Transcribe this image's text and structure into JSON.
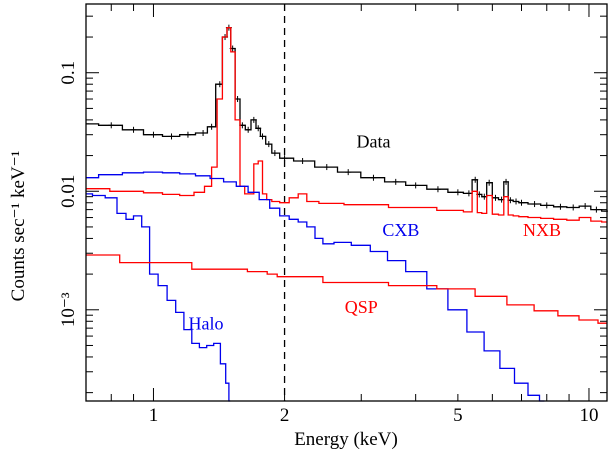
{
  "chart_data": {
    "type": "line",
    "xlabel": "Energy (keV)",
    "ylabel": "Counts sec⁻¹ keV⁻¹",
    "x_scale": "log",
    "y_scale": "log",
    "xlim": [
      0.7,
      11.0
    ],
    "ylim": [
      0.00017,
      0.38
    ],
    "x_ticks": [
      {
        "value": 1,
        "label": "1"
      },
      {
        "value": 2,
        "label": "2"
      },
      {
        "value": 5,
        "label": "5"
      },
      {
        "value": 10,
        "label": "10"
      }
    ],
    "y_ticks": [
      {
        "value": 0.001,
        "label": "10⁻³"
      },
      {
        "value": 0.01,
        "label": "0.01"
      },
      {
        "value": 0.1,
        "label": "0.1"
      }
    ],
    "reference_lines": [
      {
        "x": 2.0,
        "style": "dashed",
        "color": "#000000"
      }
    ],
    "series": [
      {
        "name": "Data",
        "color": "#000000",
        "x": [
          0.7,
          0.8,
          0.9,
          1.0,
          1.1,
          1.2,
          1.3,
          1.36,
          1.42,
          1.46,
          1.49,
          1.52,
          1.56,
          1.6,
          1.65,
          1.7,
          1.74,
          1.78,
          1.84,
          1.9,
          2.0,
          2.2,
          2.5,
          2.8,
          3.2,
          3.6,
          4.0,
          4.5,
          5.0,
          5.3,
          5.48,
          5.6,
          5.75,
          5.9,
          6.1,
          6.3,
          6.45,
          6.6,
          6.8,
          7.0,
          7.5,
          8.0,
          8.6,
          9.2,
          9.8,
          10.4,
          11.0
        ],
        "y": [
          0.037,
          0.036,
          0.033,
          0.03,
          0.029,
          0.03,
          0.031,
          0.035,
          0.08,
          0.2,
          0.24,
          0.16,
          0.06,
          0.036,
          0.033,
          0.04,
          0.034,
          0.029,
          0.025,
          0.021,
          0.019,
          0.018,
          0.016,
          0.0145,
          0.013,
          0.012,
          0.0112,
          0.0104,
          0.0098,
          0.0096,
          0.0125,
          0.0094,
          0.009,
          0.0118,
          0.0088,
          0.0085,
          0.012,
          0.0084,
          0.0082,
          0.008,
          0.0078,
          0.0076,
          0.0074,
          0.0073,
          0.0075,
          0.007,
          0.0068
        ]
      },
      {
        "name": "",
        "color": "#ff0000",
        "x": [
          0.7,
          0.9,
          1.0,
          1.1,
          1.2,
          1.28,
          1.34,
          1.38,
          1.42,
          1.46,
          1.49,
          1.52,
          1.56,
          1.6,
          1.64,
          1.68,
          1.72,
          1.76,
          1.8,
          1.84,
          1.9,
          2.0,
          2.1,
          2.2,
          2.3,
          2.5,
          3.0,
          4.0,
          5.0,
          5.3,
          5.48,
          5.6,
          5.75,
          5.9,
          6.1,
          6.3,
          6.45,
          6.6,
          6.8,
          7.0,
          7.5,
          8.0,
          8.6,
          9.2,
          9.8,
          10.4,
          11.0
        ],
        "y": [
          0.0105,
          0.01,
          0.0097,
          0.0094,
          0.0092,
          0.0098,
          0.011,
          0.016,
          0.06,
          0.2,
          0.24,
          0.15,
          0.04,
          0.011,
          0.0095,
          0.0095,
          0.017,
          0.018,
          0.0095,
          0.0085,
          0.0082,
          0.008,
          0.0088,
          0.0095,
          0.0082,
          0.0079,
          0.0077,
          0.0073,
          0.0069,
          0.0067,
          0.01,
          0.0066,
          0.0065,
          0.0092,
          0.0064,
          0.0063,
          0.009,
          0.0063,
          0.0062,
          0.0061,
          0.006,
          0.0059,
          0.0058,
          0.0057,
          0.006,
          0.0056,
          0.0055
        ]
      },
      {
        "name": "CXB",
        "color": "#0000ee",
        "x": [
          0.7,
          0.8,
          0.9,
          1.0,
          1.1,
          1.2,
          1.3,
          1.4,
          1.5,
          1.6,
          1.7,
          1.8,
          1.9,
          2.0,
          2.1,
          2.2,
          2.3,
          2.4,
          2.5,
          2.7,
          3.0,
          3.3,
          3.6,
          4.0,
          4.5,
          5.0,
          5.5,
          6.0,
          6.5,
          7.0,
          7.5,
          7.9
        ],
        "y": [
          0.013,
          0.0138,
          0.0143,
          0.0145,
          0.0143,
          0.014,
          0.0135,
          0.0128,
          0.012,
          0.011,
          0.0098,
          0.0085,
          0.0072,
          0.0062,
          0.0058,
          0.0055,
          0.005,
          0.004,
          0.0036,
          0.0037,
          0.0035,
          0.0031,
          0.0026,
          0.0021,
          0.0015,
          0.001,
          0.00065,
          0.00045,
          0.00032,
          0.00024,
          0.00019,
          0.00017
        ]
      },
      {
        "name": "Halo",
        "color": "#0000ee",
        "x": [
          0.7,
          0.75,
          0.8,
          0.85,
          0.88,
          0.92,
          0.96,
          1.0,
          1.05,
          1.1,
          1.15,
          1.2,
          1.25,
          1.3,
          1.35,
          1.4,
          1.45,
          1.48,
          1.5
        ],
        "y": [
          0.0095,
          0.0092,
          0.0088,
          0.0065,
          0.0058,
          0.0062,
          0.005,
          0.002,
          0.0016,
          0.0012,
          0.00095,
          0.00068,
          0.00052,
          0.00048,
          0.0005,
          0.00052,
          0.00035,
          0.00024,
          0.00017
        ]
      },
      {
        "name": "QSP",
        "color": "#ff0000",
        "x": [
          0.7,
          1.0,
          1.5,
          1.8,
          1.85,
          2.0,
          3.0,
          4.0,
          5.0,
          6.0,
          7.0,
          8.0,
          9.0,
          10.0,
          11.0
        ],
        "y": [
          0.0029,
          0.0025,
          0.0022,
          0.0021,
          0.002,
          0.0019,
          0.0017,
          0.0016,
          0.0015,
          0.0013,
          0.0011,
          0.00098,
          0.00089,
          0.00082,
          0.00077
        ]
      }
    ],
    "annotations": [
      {
        "text": "Data",
        "x": 3.2,
        "y": 0.0235,
        "color": "#000000"
      },
      {
        "text": "CXB",
        "x": 3.7,
        "y": 0.0042,
        "color": "#0000ee"
      },
      {
        "text": "NXB",
        "x": 7.8,
        "y": 0.0042,
        "color": "#ff0000"
      },
      {
        "text": "QSP",
        "x": 3.0,
        "y": 0.00094,
        "color": "#ff0000"
      },
      {
        "text": "Halo",
        "x": 1.32,
        "y": 0.00068,
        "color": "#0000ee"
      }
    ]
  }
}
